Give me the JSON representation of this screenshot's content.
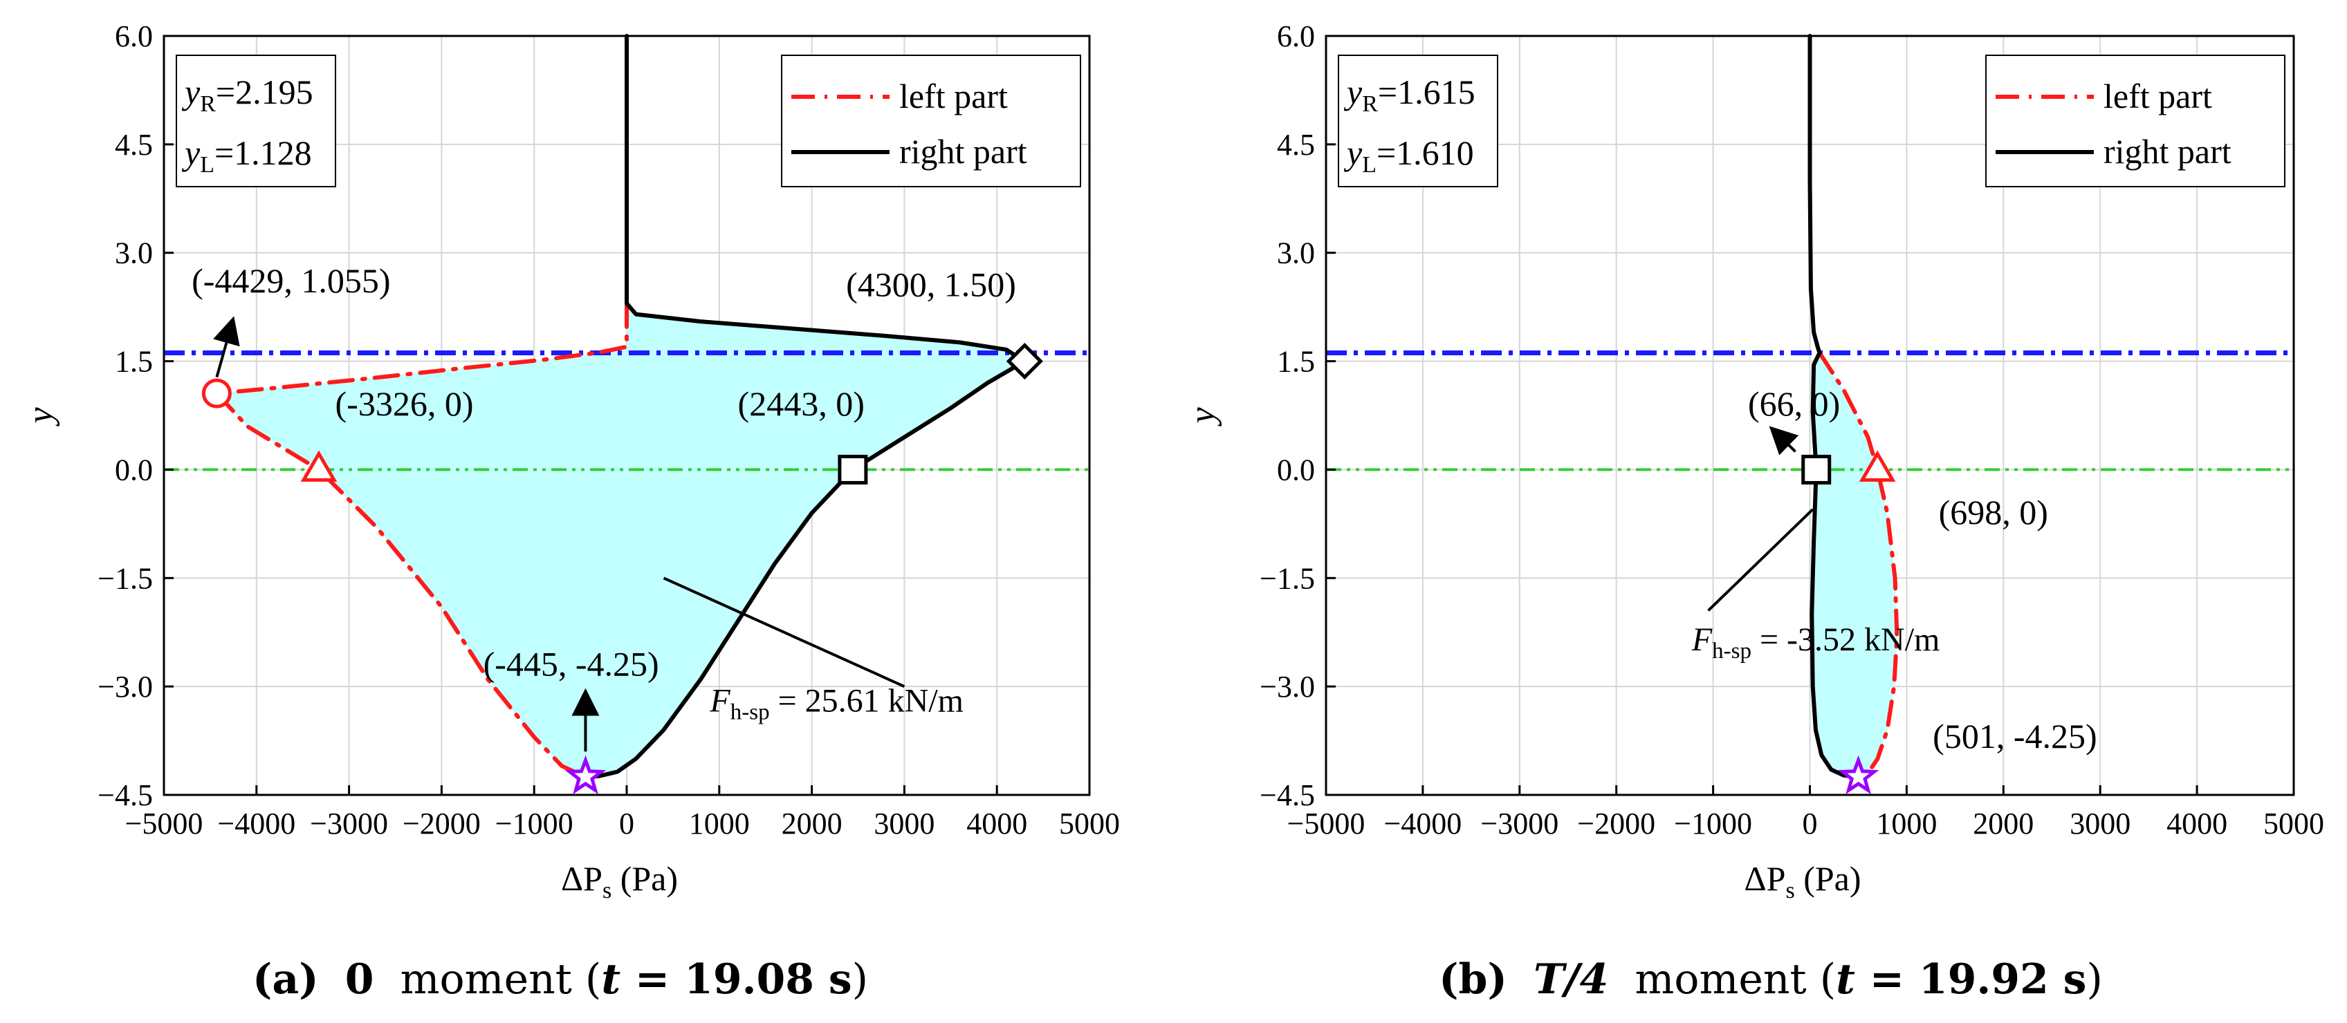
{
  "chart_data": [
    {
      "type": "line",
      "panel": "a",
      "xlabel": "ΔP",
      "xlabel_sub": "s",
      "xlabel_unit": "(Pa)",
      "ylabel": "y",
      "xlim": [
        -5000,
        5000
      ],
      "ylim": [
        -4.5,
        6.0
      ],
      "xticks": [
        -5000,
        -4000,
        -3000,
        -2000,
        -1000,
        0,
        1000,
        2000,
        3000,
        4000,
        5000
      ],
      "yticks": [
        -4.5,
        -3.0,
        -1.5,
        0.0,
        1.5,
        3.0,
        4.5,
        6.0
      ],
      "xtick_labels": [
        "−5000",
        "−4000",
        "−3000",
        "−2000",
        "−1000",
        "0",
        "1000",
        "2000",
        "3000",
        "4000",
        "5000"
      ],
      "ytick_labels": [
        "−4.5",
        "−3.0",
        "−1.5",
        "0.0",
        "1.5",
        "3.0",
        "4.5",
        "6.0"
      ],
      "grid": true,
      "info_box": {
        "yR_label": "y",
        "yR_sub": "R",
        "yR_value": "=2.195",
        "yL_label": "y",
        "yL_sub": "L",
        "yL_value": "=1.128"
      },
      "legend": {
        "position": "top-right",
        "entries": [
          "left part",
          "right part"
        ]
      },
      "hlines": [
        {
          "y": 1.615,
          "color": "#1a1aff",
          "style": "dash-dot"
        },
        {
          "y": 0.0,
          "color": "#33cc33",
          "style": "dash-dot-dot"
        }
      ],
      "series": [
        {
          "name": "left part",
          "color": "#ff1a1a",
          "style": "dash-dot",
          "x": [
            0,
            0,
            -300,
            -900,
            -1800,
            -2800,
            -3800,
            -4429,
            -4100,
            -3326,
            -2700,
            -2000,
            -1500,
            -1000,
            -700,
            -445
          ],
          "y": [
            2.3,
            1.7,
            1.62,
            1.52,
            1.4,
            1.26,
            1.13,
            1.055,
            0.6,
            0.0,
            -0.8,
            -1.9,
            -2.9,
            -3.7,
            -4.1,
            -4.25
          ]
        },
        {
          "name": "right part",
          "color": "#000000",
          "style": "solid",
          "x": [
            0,
            0,
            0,
            100,
            800,
            1800,
            2800,
            3600,
            4100,
            4300,
            3900,
            3500,
            3000,
            2443,
            2000,
            1600,
            1200,
            800,
            400,
            100,
            -100,
            -300,
            -445
          ],
          "y": [
            6.0,
            3.0,
            2.3,
            2.15,
            2.05,
            1.95,
            1.85,
            1.76,
            1.66,
            1.5,
            1.2,
            0.85,
            0.45,
            0.0,
            -0.6,
            -1.3,
            -2.1,
            -2.9,
            -3.6,
            -4.0,
            -4.18,
            -4.24,
            -4.25
          ]
        }
      ],
      "fill": {
        "color": "#c2ffff",
        "between": [
          "left part",
          "right part"
        ]
      },
      "markers": [
        {
          "shape": "circle",
          "color": "#ff1a1a",
          "x": -4429,
          "y": 1.055
        },
        {
          "shape": "triangle",
          "color": "#ff1a1a",
          "x": -3326,
          "y": 0.0
        },
        {
          "shape": "square",
          "color": "#000000",
          "x": 2443,
          "y": 0.0
        },
        {
          "shape": "diamond",
          "color": "#000000",
          "x": 4300,
          "y": 1.5
        },
        {
          "shape": "star",
          "color": "#9900ff",
          "x": -445,
          "y": -4.25
        }
      ],
      "annotations": [
        {
          "text": "(-4429, 1.055)",
          "x": -4700,
          "y": 2.45
        },
        {
          "text": "(-3326, 0)",
          "x": -3150,
          "y": 0.75
        },
        {
          "text": "(2443, 0)",
          "x": 1200,
          "y": 0.75
        },
        {
          "text": "(4300, 1.50)",
          "x": 2370,
          "y": 2.4
        },
        {
          "text": "(-445, -4.25)",
          "x": -1550,
          "y": -2.85
        },
        {
          "label": "F",
          "sub": "h-sp",
          "text": " = 25.61 kN/m",
          "x": 900,
          "y": -3.35
        }
      ],
      "arrows": [
        {
          "from": [
            -4429,
            1.28
          ],
          "to": [
            -4260,
            2.05
          ]
        },
        {
          "from": [
            -445,
            -3.9
          ],
          "to": [
            -445,
            -3.1
          ]
        },
        {
          "from": [
            3000,
            -3.0
          ],
          "to": [
            400,
            -1.5
          ],
          "head": false
        }
      ],
      "caption": {
        "letter": "(a)",
        "t_symbol": "0",
        "moment": "moment (",
        "t_var": "t",
        "t_eq": " = 19.08 s",
        "close": ")"
      }
    },
    {
      "type": "line",
      "panel": "b",
      "xlabel": "ΔP",
      "xlabel_sub": "s",
      "xlabel_unit": "(Pa)",
      "ylabel": "y",
      "xlim": [
        -5000,
        5000
      ],
      "ylim": [
        -4.5,
        6.0
      ],
      "xticks": [
        -5000,
        -4000,
        -3000,
        -2000,
        -1000,
        0,
        1000,
        2000,
        3000,
        4000,
        5000
      ],
      "yticks": [
        -4.5,
        -3.0,
        -1.5,
        0.0,
        1.5,
        3.0,
        4.5,
        6.0
      ],
      "xtick_labels": [
        "−5000",
        "−4000",
        "−3000",
        "−2000",
        "−1000",
        "0",
        "1000",
        "2000",
        "3000",
        "4000",
        "5000"
      ],
      "ytick_labels": [
        "−4.5",
        "−3.0",
        "−1.5",
        "0.0",
        "1.5",
        "3.0",
        "4.5",
        "6.0"
      ],
      "grid": true,
      "info_box": {
        "yR_label": "y",
        "yR_sub": "R",
        "yR_value": "=1.615",
        "yL_label": "y",
        "yL_sub": "L",
        "yL_value": "=1.610"
      },
      "legend": {
        "position": "top-right",
        "entries": [
          "left part",
          "right part"
        ]
      },
      "hlines": [
        {
          "y": 1.615,
          "color": "#1a1aff",
          "style": "dash-dot"
        },
        {
          "y": 0.0,
          "color": "#33cc33",
          "style": "dash-dot-dot"
        }
      ],
      "series": [
        {
          "name": "left part",
          "color": "#ff1a1a",
          "style": "dash-dot",
          "x": [
            100,
            350,
            600,
            698,
            800,
            880,
            900,
            870,
            800,
            700,
            600,
            501
          ],
          "y": [
            1.615,
            1.1,
            0.45,
            0.0,
            -0.6,
            -1.5,
            -2.3,
            -3.0,
            -3.6,
            -4.0,
            -4.2,
            -4.25
          ]
        },
        {
          "name": "right part",
          "color": "#000000",
          "style": "solid",
          "x": [
            0,
            0,
            10,
            40,
            80,
            100,
            40,
            30,
            66,
            40,
            20,
            30,
            60,
            120,
            220,
            350,
            501
          ],
          "y": [
            6.0,
            4.0,
            2.5,
            1.9,
            1.7,
            1.615,
            1.45,
            0.8,
            0.0,
            -1.0,
            -2.0,
            -3.0,
            -3.6,
            -3.95,
            -4.15,
            -4.23,
            -4.25
          ]
        }
      ],
      "fill": {
        "color": "#c2ffff",
        "between": [
          "left part",
          "right part"
        ]
      },
      "markers": [
        {
          "shape": "square",
          "color": "#000000",
          "x": 66,
          "y": 0.0
        },
        {
          "shape": "triangle",
          "color": "#ff1a1a",
          "x": 698,
          "y": 0.0
        },
        {
          "shape": "star",
          "color": "#9900ff",
          "x": 501,
          "y": -4.25
        }
      ],
      "annotations": [
        {
          "text": "(66, 0)",
          "x": -640,
          "y": 0.75
        },
        {
          "text": "(698, 0)",
          "x": 1330,
          "y": -0.75
        },
        {
          "text": "(501, -4.25)",
          "x": 1270,
          "y": -3.85
        },
        {
          "label": "F",
          "sub": "h-sp",
          "text": " = -3.52 kN/m",
          "x": -1220,
          "y": -2.5
        }
      ],
      "arrows": [
        {
          "from": [
            -150,
            0.25
          ],
          "to": [
            -380,
            0.55
          ]
        },
        {
          "from": [
            30,
            -0.55
          ],
          "to": [
            -1050,
            -1.95
          ],
          "head": false
        }
      ],
      "caption": {
        "letter": "(b)",
        "t_symbol": "T/4",
        "moment": "moment (",
        "t_var": "t",
        "t_eq": " = 19.92 s",
        "close": ")"
      }
    }
  ]
}
